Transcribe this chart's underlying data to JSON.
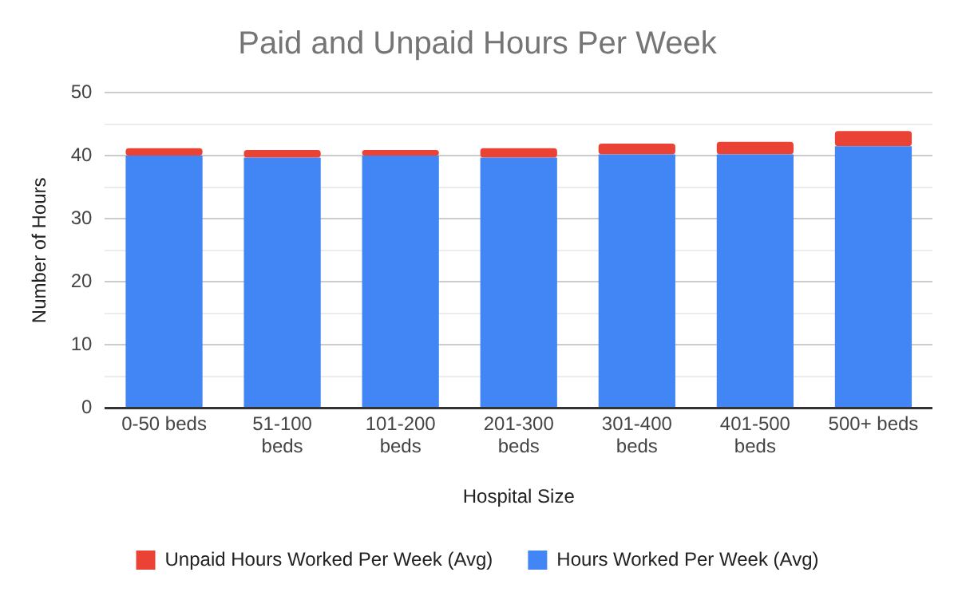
{
  "chart_data": {
    "type": "bar",
    "title": "Paid and Unpaid Hours Per Week",
    "xlabel": "Hospital Size",
    "ylabel": "Number of Hours",
    "categories": [
      "0-50 beds",
      "51-100 beds",
      "101-200 beds",
      "201-300 beds",
      "301-400 beds",
      "401-500 beds",
      "500+ beds"
    ],
    "stacked": true,
    "series": [
      {
        "name": "Hours Worked Per Week (Avg)",
        "color": "#4285f4",
        "values": [
          40,
          39.7,
          40,
          39.7,
          40.2,
          40.2,
          41.5
        ]
      },
      {
        "name": "Unpaid Hours Worked Per Week (Avg)",
        "color": "#ea4335",
        "values": [
          1.2,
          1.2,
          0.9,
          1.5,
          1.7,
          2.0,
          2.4
        ]
      }
    ],
    "ylim": [
      0,
      50
    ],
    "yticks": [
      0,
      {
        "value": 5,
        "label": null
      },
      10,
      {
        "value": 15,
        "label": null
      },
      20,
      {
        "value": 25,
        "label": null
      },
      30,
      {
        "value": 35,
        "label": null
      },
      40,
      {
        "value": 45,
        "label": null
      },
      50
    ],
    "grid": "y",
    "legend": "bottom"
  }
}
